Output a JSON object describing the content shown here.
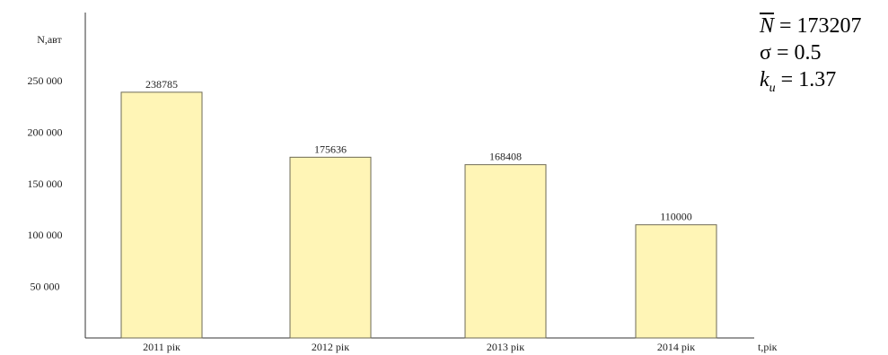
{
  "chart_data": {
    "type": "bar",
    "ylabel": "N,авт",
    "xlabel": "t,рік",
    "categories": [
      "2011 рік",
      "2012 рік",
      "2013 рік",
      "2014 рік"
    ],
    "values": [
      238785,
      175636,
      168408,
      110000
    ],
    "data_labels": [
      "238785",
      "175636",
      "168408",
      "110000"
    ],
    "yticks": [
      {
        "value": 50000,
        "label": "50 000"
      },
      {
        "value": 100000,
        "label": "100 000"
      },
      {
        "value": 150000,
        "label": "150 000"
      },
      {
        "value": 200000,
        "label": "200 000"
      },
      {
        "value": 250000,
        "label": "250 000"
      }
    ],
    "ylim": [
      0,
      260000
    ],
    "grid": false,
    "bar_color": "#fff5b6",
    "bar_edge_color": "#6e6a55"
  },
  "stats": {
    "mean_symbol": "N",
    "mean_value": "= 173207",
    "sigma_symbol": "σ",
    "sigma_value": "= 0.5",
    "k_symbol": "k",
    "k_subscript": "u",
    "k_value": "= 1.37"
  }
}
